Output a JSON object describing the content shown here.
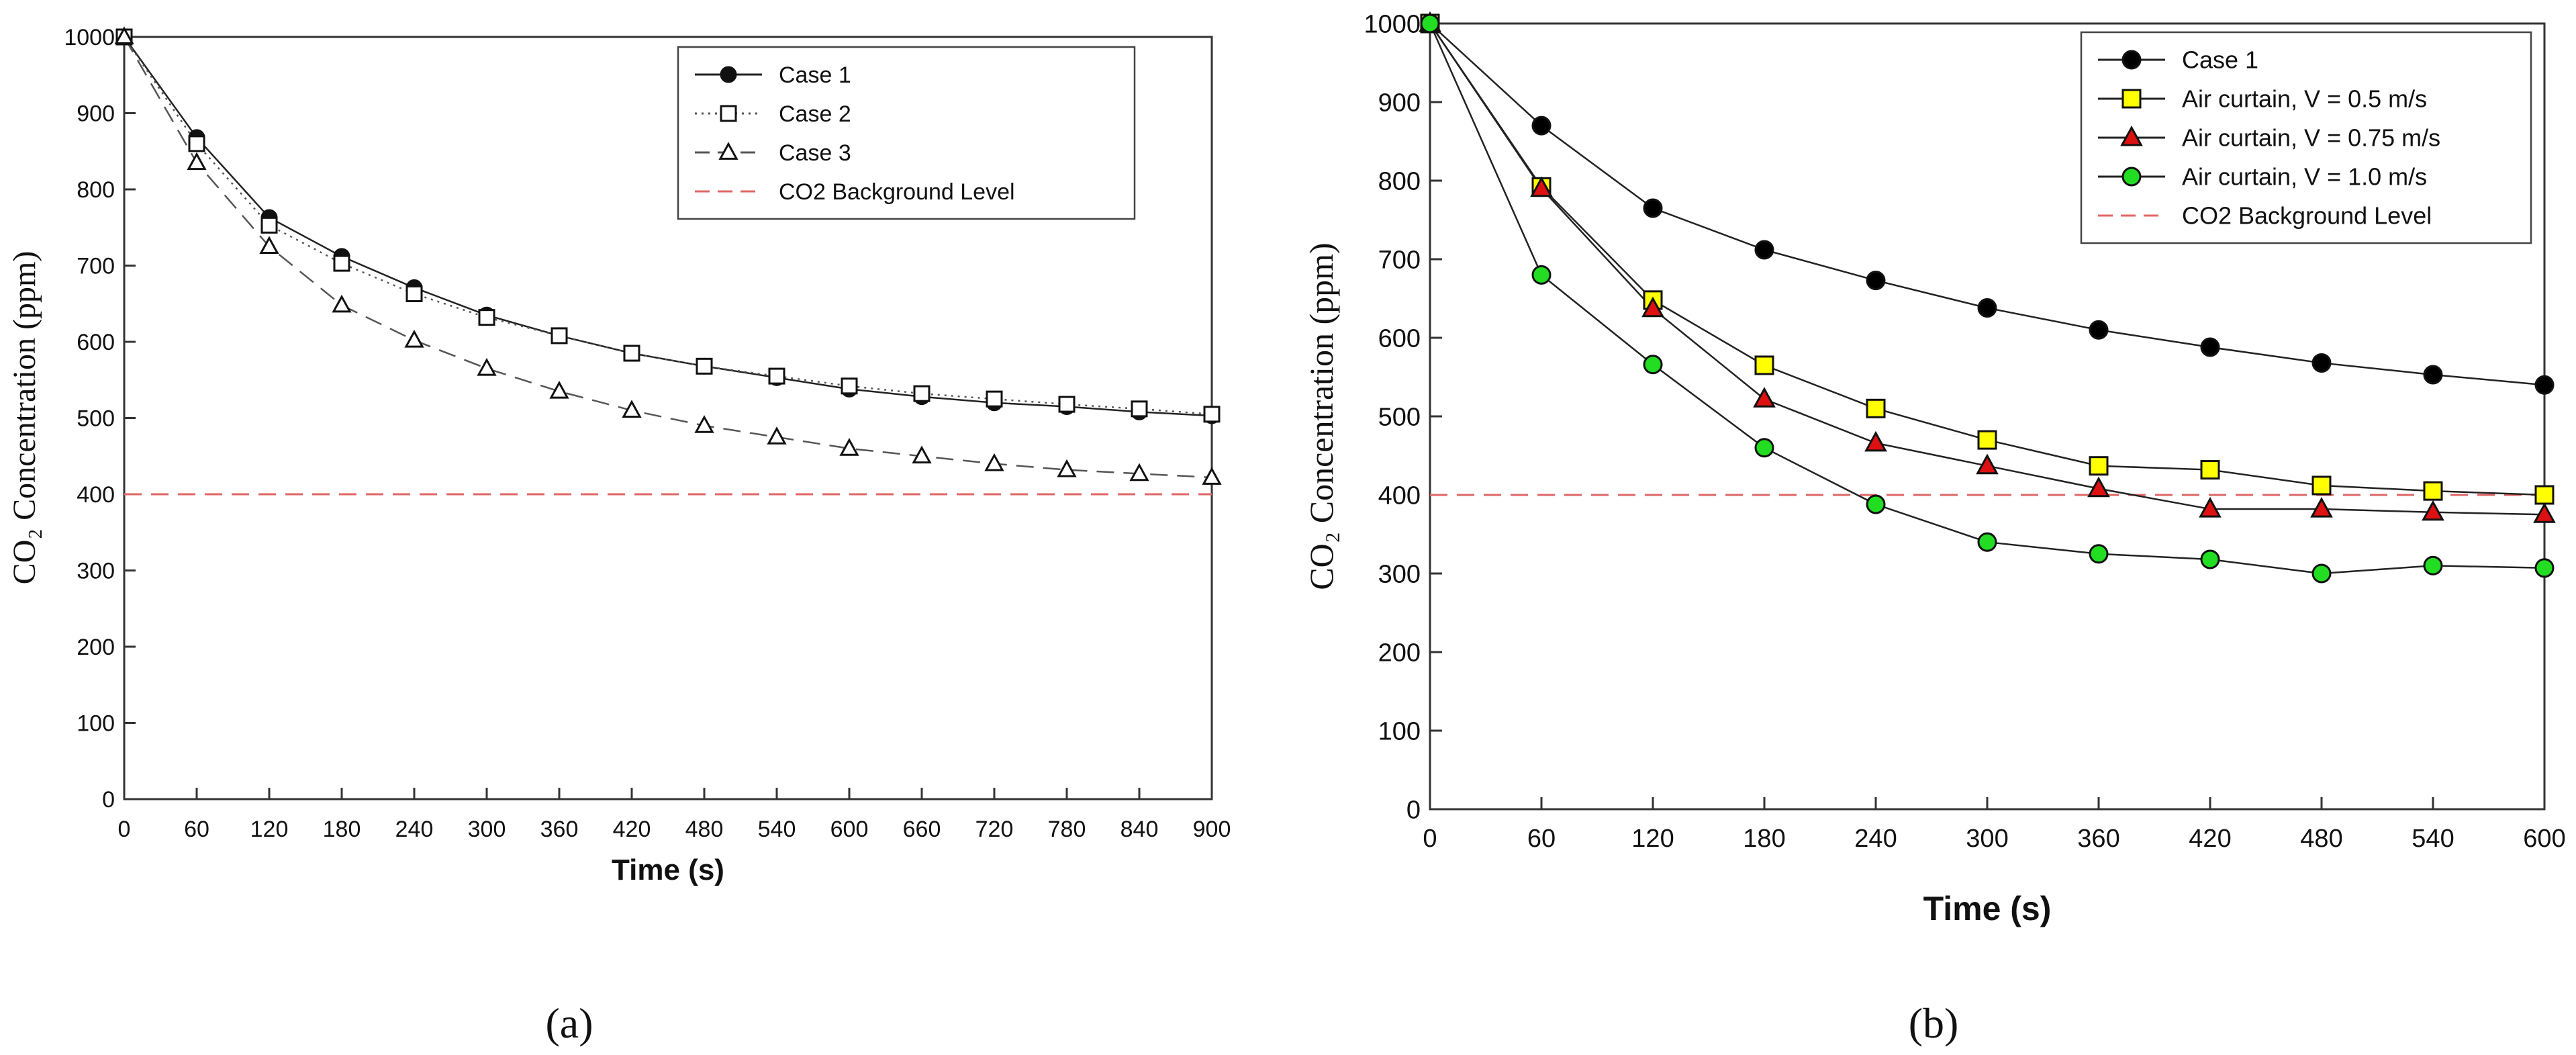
{
  "chart_data": [
    {
      "type": "line",
      "panel_label": "(a)",
      "xlabel": "Time (s)",
      "ylabel": "CO₂ Concentration (ppm)",
      "xlim": [
        0,
        900
      ],
      "ylim": [
        0,
        1000
      ],
      "x_ticks": [
        0,
        60,
        120,
        180,
        240,
        300,
        360,
        420,
        480,
        540,
        600,
        660,
        720,
        780,
        840,
        900
      ],
      "y_ticks": [
        0,
        100,
        200,
        300,
        400,
        500,
        600,
        700,
        800,
        900,
        1000
      ],
      "x": [
        0,
        60,
        120,
        180,
        240,
        300,
        360,
        420,
        480,
        540,
        600,
        660,
        720,
        780,
        840,
        900
      ],
      "legend_position": "top-right",
      "series": [
        {
          "name": "Case 1",
          "values": [
            1000,
            868,
            763,
            712,
            671,
            635,
            608,
            585,
            568,
            553,
            538,
            528,
            520,
            515,
            508,
            503
          ],
          "line_style": "solid",
          "marker": "filled-circle",
          "color": "#222222",
          "fill": "#111111"
        },
        {
          "name": "Case 2",
          "values": [
            1000,
            860,
            753,
            703,
            663,
            632,
            608,
            585,
            568,
            555,
            542,
            532,
            525,
            518,
            512,
            505
          ],
          "line_style": "dotted",
          "marker": "open-square",
          "color": "#555555",
          "fill": "#ffffff"
        },
        {
          "name": "Case 3",
          "values": [
            1000,
            835,
            725,
            648,
            602,
            565,
            535,
            510,
            490,
            475,
            460,
            450,
            440,
            432,
            427,
            422
          ],
          "line_style": "dashed",
          "marker": "open-triangle",
          "color": "#555555",
          "fill": "#ffffff"
        },
        {
          "name": "CO2 Background Level",
          "values": [
            400,
            400,
            400,
            400,
            400,
            400,
            400,
            400,
            400,
            400,
            400,
            400,
            400,
            400,
            400,
            400
          ],
          "line_style": "dashed",
          "marker": "none",
          "color": "#e06666"
        }
      ]
    },
    {
      "type": "line",
      "panel_label": "(b)",
      "xlabel": "Time (s)",
      "ylabel": "CO₂ Concentration (ppm)",
      "xlim": [
        0,
        600
      ],
      "ylim": [
        0,
        1000
      ],
      "x_ticks": [
        0,
        60,
        120,
        180,
        240,
        300,
        360,
        420,
        480,
        540,
        600
      ],
      "y_ticks": [
        0,
        100,
        200,
        300,
        400,
        500,
        600,
        700,
        800,
        900,
        1000
      ],
      "x": [
        0,
        60,
        120,
        180,
        240,
        300,
        360,
        420,
        480,
        540,
        600
      ],
      "legend_position": "top-right",
      "series": [
        {
          "name": "Case 1",
          "values": [
            1000,
            870,
            765,
            712,
            673,
            638,
            610,
            588,
            568,
            553,
            540
          ],
          "line_style": "solid",
          "marker": "filled-circle",
          "color": "#222222",
          "fill": "#000000"
        },
        {
          "name": "Air curtain, V = 0.5 m/s",
          "values": [
            1000,
            792,
            648,
            565,
            510,
            470,
            437,
            432,
            412,
            405,
            400
          ],
          "line_style": "solid",
          "marker": "square",
          "color": "#222222",
          "fill": "#ffff00"
        },
        {
          "name": "Air curtain, V = 0.75 m/s",
          "values": [
            1000,
            790,
            637,
            522,
            466,
            437,
            408,
            382,
            382,
            378,
            375
          ],
          "line_style": "solid",
          "marker": "triangle",
          "color": "#222222",
          "fill": "#dd1111"
        },
        {
          "name": "Air curtain, V = 1.0 m/s",
          "values": [
            1000,
            680,
            566,
            460,
            388,
            340,
            325,
            318,
            300,
            310,
            307
          ],
          "line_style": "solid",
          "marker": "circle",
          "color": "#222222",
          "fill": "#22dd22"
        },
        {
          "name": "CO2 Background Level",
          "values": [
            400,
            400,
            400,
            400,
            400,
            400,
            400,
            400,
            400,
            400,
            400
          ],
          "line_style": "dashed",
          "marker": "none",
          "color": "#e06666"
        }
      ]
    }
  ]
}
